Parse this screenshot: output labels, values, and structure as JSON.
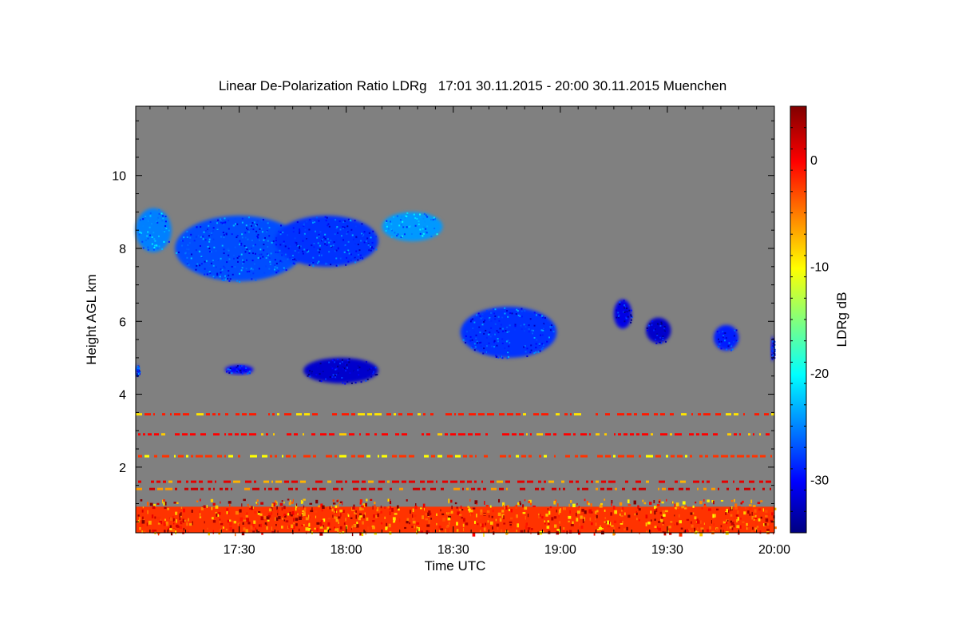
{
  "chart_data": {
    "type": "heatmap",
    "title": "Linear De-Polarization Ratio LDRg   17:01 30.11.2015 - 20:00 30.11.2015 Muenchen",
    "xlabel": "Time UTC",
    "ylabel": "Height AGL km",
    "colorbar_label": "LDRg dB",
    "x_range": [
      "17:01",
      "20:00"
    ],
    "y_range": [
      0.2,
      11.9
    ],
    "colorbar_range": [
      -35,
      5
    ],
    "x_ticks": [
      {
        "label": "17:30",
        "t": "17:30"
      },
      {
        "label": "18:00",
        "t": "18:00"
      },
      {
        "label": "18:30",
        "t": "18:30"
      },
      {
        "label": "19:00",
        "t": "19:00"
      },
      {
        "label": "19:30",
        "t": "19:30"
      },
      {
        "label": "20:00",
        "t": "20:00"
      }
    ],
    "y_ticks": [
      {
        "label": "2",
        "v": 2
      },
      {
        "label": "4",
        "v": 4
      },
      {
        "label": "6",
        "v": 6
      },
      {
        "label": "8",
        "v": 8
      },
      {
        "label": "10",
        "v": 10
      }
    ],
    "colorbar_ticks": [
      {
        "label": "0",
        "v": 0
      },
      {
        "label": "-10",
        "v": -10
      },
      {
        "label": "-20",
        "v": -20
      },
      {
        "label": "-30",
        "v": -30
      }
    ],
    "background_color": "#808080",
    "colormap": "jet",
    "features": [
      {
        "kind": "cirrus",
        "t_start": "17:01",
        "t_end": "17:11",
        "h_bottom": 7.9,
        "h_top": 9.1,
        "ldr": -25
      },
      {
        "kind": "cirrus",
        "t_start": "17:12",
        "t_end": "17:48",
        "h_bottom": 7.1,
        "h_top": 8.9,
        "ldr": -27
      },
      {
        "kind": "cirrus",
        "t_start": "17:40",
        "t_end": "18:09",
        "h_bottom": 7.5,
        "h_top": 8.9,
        "ldr": -28
      },
      {
        "kind": "cirrus",
        "t_start": "18:10",
        "t_end": "18:27",
        "h_bottom": 8.2,
        "h_top": 9.0,
        "ldr": -24
      },
      {
        "kind": "cloud",
        "t_start": "17:01",
        "t_end": "17:02",
        "h_bottom": 4.5,
        "h_top": 4.8,
        "ldr": -28
      },
      {
        "kind": "cloud",
        "t_start": "17:26",
        "t_end": "17:34",
        "h_bottom": 4.55,
        "h_top": 4.8,
        "ldr": -30
      },
      {
        "kind": "cloud",
        "t_start": "17:48",
        "t_end": "18:09",
        "h_bottom": 4.3,
        "h_top": 5.0,
        "ldr": -32
      },
      {
        "kind": "cloud",
        "t_start": "18:32",
        "t_end": "18:59",
        "h_bottom": 5.0,
        "h_top": 6.4,
        "ldr": -28
      },
      {
        "kind": "cloud",
        "t_start": "19:15",
        "t_end": "19:20",
        "h_bottom": 5.8,
        "h_top": 6.6,
        "ldr": -31
      },
      {
        "kind": "cloud",
        "t_start": "19:24",
        "t_end": "19:31",
        "h_bottom": 5.4,
        "h_top": 6.1,
        "ldr": -32
      },
      {
        "kind": "cloud",
        "t_start": "19:43",
        "t_end": "19:50",
        "h_bottom": 5.2,
        "h_top": 5.9,
        "ldr": -29
      },
      {
        "kind": "cloud",
        "t_start": "19:59",
        "t_end": "20:00",
        "h_bottom": 4.9,
        "h_top": 5.6,
        "ldr": -30
      },
      {
        "kind": "aerosol_layer",
        "t_start": "17:01",
        "t_end": "20:00",
        "h_bottom": 0.2,
        "h_top": 1.3,
        "ldr": -2
      },
      {
        "kind": "noise_line",
        "t_start": "17:01",
        "t_end": "20:00",
        "h": 3.45,
        "ldr": -1
      },
      {
        "kind": "noise_line",
        "t_start": "17:01",
        "t_end": "20:00",
        "h": 2.9,
        "ldr": 0
      },
      {
        "kind": "noise_line",
        "t_start": "17:01",
        "t_end": "20:00",
        "h": 2.3,
        "ldr": -2
      },
      {
        "kind": "noise_line",
        "t_start": "17:01",
        "t_end": "20:00",
        "h": 1.6,
        "ldr": 1
      },
      {
        "kind": "noise_line",
        "t_start": "17:01",
        "t_end": "20:00",
        "h": 1.4,
        "ldr": 2
      }
    ]
  }
}
